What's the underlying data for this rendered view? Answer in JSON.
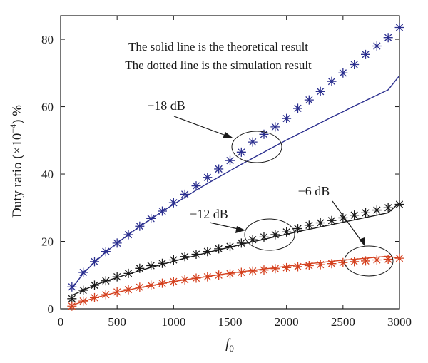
{
  "chart_data": {
    "type": "line",
    "xlabel": "f0",
    "xlabel_base": "f",
    "xlabel_sub": "0",
    "ylabel": "Duty ratio (×10−4) %",
    "ylabel_pre": "Duty ratio (×10",
    "ylabel_sup": "−4",
    "ylabel_post": ") %",
    "xlim": [
      0,
      3000
    ],
    "ylim": [
      0,
      87
    ],
    "xticks": [
      0,
      500,
      1000,
      1500,
      2000,
      2500,
      3000
    ],
    "yticks": [
      0,
      20,
      40,
      60,
      80
    ],
    "grid": false,
    "notes": [
      "The solid line is the theoretical result",
      "The dotted line is the simulation result"
    ],
    "annotations": [
      {
        "label": "−18 dB",
        "series": "−18 dB"
      },
      {
        "label": "−12 dB",
        "series": "−12 dB"
      },
      {
        "label": "−6 dB",
        "series": "−6 dB"
      }
    ],
    "series": [
      {
        "name": "−18 dB",
        "color": "#2b2f8f",
        "theoretical": {
          "x": [
            100,
            200,
            300,
            400,
            500,
            600,
            700,
            800,
            900,
            1000,
            1100,
            1200,
            1300,
            1400,
            1500,
            1600,
            1700,
            1800,
            1900,
            2000,
            2100,
            2200,
            2300,
            2400,
            2500,
            2600,
            2700,
            2800,
            2900,
            3000
          ],
          "y": [
            6.0,
            10.5,
            13.8,
            16.8,
            19.5,
            22.0,
            24.4,
            26.7,
            28.9,
            31.0,
            33.1,
            35.2,
            37.2,
            39.1,
            41.0,
            42.9,
            44.7,
            46.5,
            48.3,
            50.1,
            51.8,
            53.5,
            55.2,
            56.9,
            58.5,
            60.2,
            61.8,
            63.4,
            65.0,
            69.2
          ]
        },
        "simulation": {
          "x": [
            100,
            200,
            300,
            400,
            500,
            600,
            700,
            800,
            900,
            1000,
            1100,
            1200,
            1300,
            1400,
            1500,
            1600,
            1700,
            1800,
            1900,
            2000,
            2100,
            2200,
            2300,
            2400,
            2500,
            2600,
            2700,
            2800,
            2900,
            3000
          ],
          "y": [
            6.5,
            10.8,
            14.0,
            17.0,
            19.5,
            22.0,
            24.5,
            26.8,
            29.0,
            31.5,
            34.0,
            36.5,
            39.0,
            41.5,
            44.0,
            46.5,
            49.5,
            51.8,
            54.0,
            56.5,
            59.5,
            62.0,
            64.5,
            67.5,
            70.0,
            72.5,
            75.5,
            78.0,
            80.5,
            83.5
          ]
        }
      },
      {
        "name": "−12 dB",
        "color": "#1a1a1a",
        "theoretical": {
          "x": [
            100,
            200,
            300,
            400,
            500,
            600,
            700,
            800,
            900,
            1000,
            1100,
            1200,
            1300,
            1400,
            1500,
            1600,
            1700,
            1800,
            1900,
            2000,
            2100,
            2200,
            2300,
            2400,
            2500,
            2600,
            2700,
            2800,
            2900,
            3000
          ],
          "y": [
            4.0,
            5.5,
            7.0,
            8.2,
            9.3,
            10.3,
            11.3,
            12.3,
            13.2,
            14.1,
            15.0,
            15.8,
            16.7,
            17.5,
            18.3,
            19.1,
            19.9,
            20.6,
            21.4,
            22.1,
            22.9,
            23.6,
            24.3,
            25.0,
            25.7,
            26.4,
            27.1,
            27.8,
            28.5,
            31.5
          ]
        },
        "simulation": {
          "x": [
            100,
            200,
            300,
            400,
            500,
            600,
            700,
            800,
            900,
            1000,
            1100,
            1200,
            1300,
            1400,
            1500,
            1600,
            1700,
            1800,
            1900,
            2000,
            2100,
            2200,
            2300,
            2400,
            2500,
            2600,
            2700,
            2800,
            2900,
            3000
          ],
          "y": [
            3.0,
            5.5,
            7.0,
            8.3,
            9.5,
            10.5,
            12.0,
            12.8,
            13.5,
            14.5,
            15.5,
            16.2,
            17.0,
            17.8,
            18.5,
            19.5,
            20.5,
            21.3,
            22.0,
            22.8,
            23.8,
            24.8,
            25.5,
            26.2,
            27.0,
            27.8,
            28.5,
            29.3,
            30.0,
            31.0
          ]
        }
      },
      {
        "name": "−6 dB",
        "color": "#d4401e",
        "theoretical": {
          "x": [
            100,
            200,
            300,
            400,
            500,
            600,
            700,
            800,
            900,
            1000,
            1100,
            1200,
            1300,
            1400,
            1500,
            1600,
            1700,
            1800,
            1900,
            2000,
            2100,
            2200,
            2300,
            2400,
            2500,
            2600,
            2700,
            2800,
            2900,
            3000
          ],
          "y": [
            1.0,
            2.2,
            3.2,
            4.1,
            4.9,
            5.6,
            6.3,
            6.9,
            7.5,
            8.1,
            8.6,
            9.1,
            9.6,
            10.1,
            10.6,
            11.0,
            11.4,
            11.8,
            12.2,
            12.6,
            13.0,
            13.4,
            13.7,
            14.1,
            14.4,
            14.7,
            15.0,
            15.3,
            15.6,
            15.0
          ]
        },
        "simulation": {
          "x": [
            100,
            200,
            300,
            400,
            500,
            600,
            700,
            800,
            900,
            1000,
            1100,
            1200,
            1300,
            1400,
            1500,
            1600,
            1700,
            1800,
            1900,
            2000,
            2100,
            2200,
            2300,
            2400,
            2500,
            2600,
            2700,
            2800,
            2900,
            3000
          ],
          "y": [
            0.8,
            2.3,
            3.3,
            4.2,
            5.0,
            5.7,
            6.4,
            7.0,
            7.6,
            8.1,
            8.6,
            9.1,
            9.5,
            10.0,
            10.4,
            10.8,
            11.2,
            11.5,
            11.9,
            12.2,
            12.5,
            12.8,
            13.1,
            13.4,
            13.7,
            14.0,
            14.2,
            14.5,
            14.7,
            15.0
          ]
        }
      }
    ]
  }
}
